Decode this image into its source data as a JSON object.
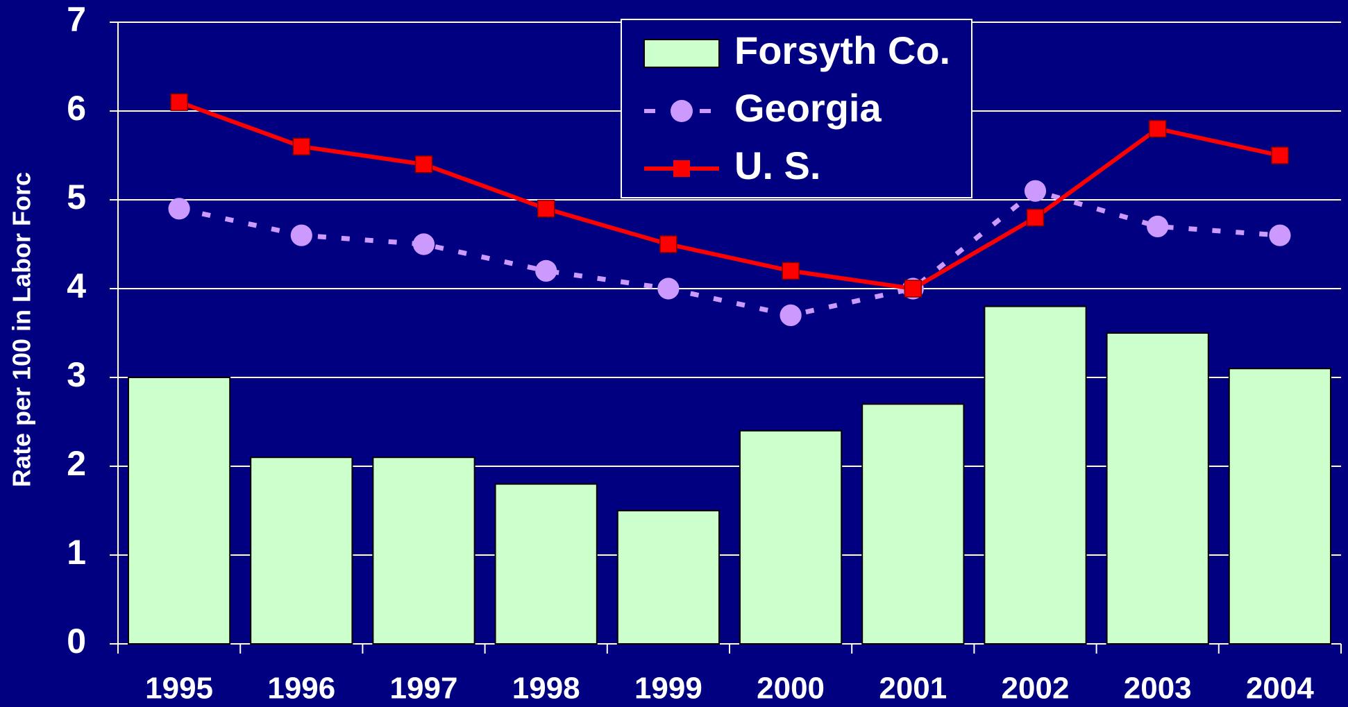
{
  "chart_data": {
    "type": "bar",
    "y_label": "Rate per 100 in Labor Forc",
    "categories": [
      "1995",
      "1996",
      "1997",
      "1998",
      "1999",
      "2000",
      "2001",
      "2002",
      "2003",
      "2004"
    ],
    "series": [
      {
        "name": "Forsyth Co.",
        "type": "bar",
        "color": "#ccffcc",
        "values": [
          3.0,
          2.1,
          2.1,
          1.8,
          1.5,
          2.4,
          2.7,
          3.8,
          3.5,
          3.1
        ]
      },
      {
        "name": "Georgia",
        "type": "line",
        "color": "#cc99ff",
        "marker": "circle",
        "line_style": "dashed",
        "values": [
          4.9,
          4.6,
          4.5,
          4.2,
          4.0,
          3.7,
          4.0,
          5.1,
          4.7,
          4.6
        ]
      },
      {
        "name": "U. S.",
        "type": "line",
        "color": "#ff0000",
        "marker": "square",
        "line_style": "solid",
        "values": [
          6.1,
          5.6,
          5.4,
          4.9,
          4.5,
          4.2,
          4.0,
          4.8,
          5.8,
          5.5
        ]
      }
    ],
    "ylim": [
      0,
      7
    ],
    "yticks": [
      0,
      1,
      2,
      3,
      4,
      5,
      6,
      7
    ],
    "grid": true,
    "legend": "top"
  }
}
